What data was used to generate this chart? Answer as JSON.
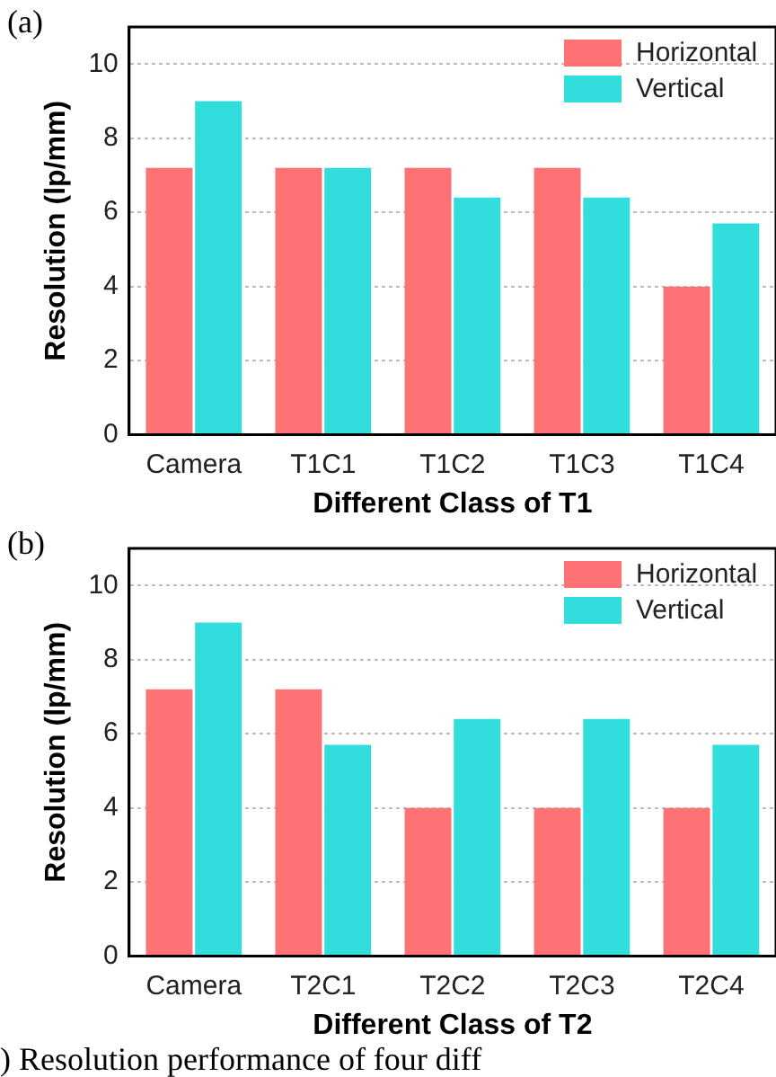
{
  "chart_data": [
    {
      "type": "bar",
      "title": "(a)",
      "xlabel": "Different Class of T1",
      "ylabel": "Resolution (lp/mm)",
      "categories": [
        "Camera",
        "T1C1",
        "T1C2",
        "T1C3",
        "T1C4"
      ],
      "series": [
        {
          "name": "Horizontal",
          "color": "#fe7276",
          "values": [
            7.2,
            7.2,
            7.2,
            7.2,
            4.0
          ]
        },
        {
          "name": "Vertical",
          "color": "#32dddd",
          "values": [
            9.0,
            7.2,
            6.4,
            6.4,
            5.7
          ]
        }
      ],
      "ylim": [
        0,
        11
      ],
      "yticks": [
        0,
        2,
        4,
        6,
        8,
        10
      ],
      "grid": "y",
      "legend": "top right"
    },
    {
      "type": "bar",
      "title": "(b)",
      "xlabel": "Different Class of T2",
      "ylabel": "Resolution (lp/mm)",
      "categories": [
        "Camera",
        "T2C1",
        "T2C2",
        "T2C3",
        "T2C4"
      ],
      "series": [
        {
          "name": "Horizontal",
          "color": "#fe7276",
          "values": [
            7.2,
            7.2,
            4.0,
            4.0,
            4.0
          ]
        },
        {
          "name": "Vertical",
          "color": "#32dddd",
          "values": [
            9.0,
            5.7,
            6.4,
            6.4,
            5.7
          ]
        }
      ],
      "ylim": [
        0,
        11
      ],
      "yticks": [
        0,
        2,
        4,
        6,
        8,
        10
      ],
      "grid": "y",
      "legend": "top right",
      "annotations": [
        ") Resolution performance of four diff"
      ]
    }
  ]
}
